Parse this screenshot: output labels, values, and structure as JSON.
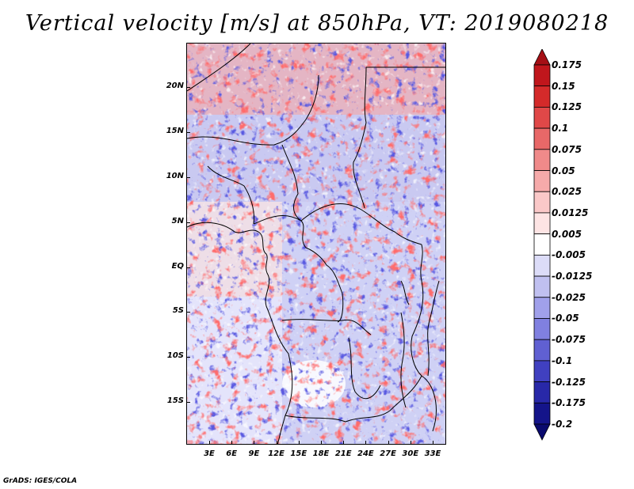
{
  "title": "Vertical velocity [m/s] at 850hPa, VT: 2019080218",
  "footer": "GrADS: IGES/COLA",
  "map": {
    "lat_ticks": [
      "20N",
      "15N",
      "10N",
      "5N",
      "EQ",
      "5S",
      "10S",
      "15S"
    ],
    "lon_ticks": [
      "3E",
      "6E",
      "9E",
      "12E",
      "15E",
      "18E",
      "21E",
      "24E",
      "27E",
      "30E",
      "33E"
    ],
    "lat_range": [
      -20,
      25
    ],
    "lon_range": [
      0,
      35
    ]
  },
  "colorbar": {
    "labels": [
      "0.175",
      "0.15",
      "0.125",
      "0.1",
      "0.075",
      "0.05",
      "0.025",
      "0.0125",
      "0.005",
      "-0.005",
      "-0.0125",
      "-0.025",
      "-0.05",
      "-0.075",
      "-0.1",
      "-0.125",
      "-0.175",
      "-0.2"
    ],
    "colors": [
      "#a50f15",
      "#c0161c",
      "#d42a2a",
      "#e04848",
      "#e86868",
      "#f08a8a",
      "#f6aaaa",
      "#fac8c8",
      "#fde4e4",
      "#ffffff",
      "#dcdcf8",
      "#c0c0f0",
      "#a0a0ea",
      "#8080e0",
      "#6060d2",
      "#4040c0",
      "#2828a8",
      "#14148a",
      "#0a0a6e"
    ]
  }
}
